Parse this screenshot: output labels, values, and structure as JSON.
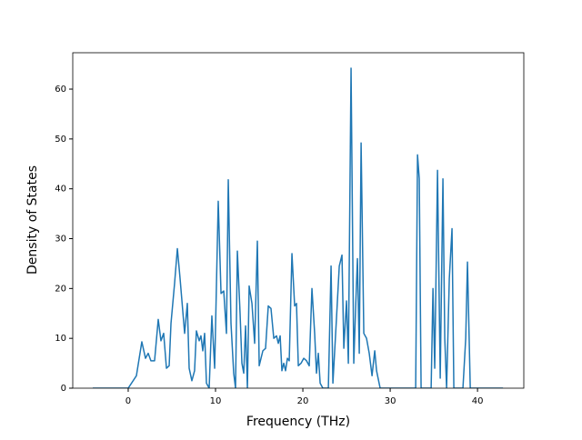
{
  "chart_data": {
    "type": "line",
    "x_label": "Frequency (THz)",
    "y_label": "Density of States",
    "xlim": [
      -6.35,
      45.3
    ],
    "ylim": [
      0,
      67.3
    ],
    "xticks": [
      0,
      10,
      20,
      30,
      40
    ],
    "yticks": [
      0,
      10,
      20,
      30,
      40,
      50,
      60
    ],
    "x": [
      -4.06,
      0,
      0.94,
      1.56,
      1.98,
      2.29,
      2.6,
      3.02,
      3.44,
      3.75,
      4.06,
      4.38,
      4.69,
      4.9,
      5.31,
      5.63,
      5.94,
      6.46,
      6.77,
      6.98,
      7.29,
      7.6,
      7.81,
      8.13,
      8.33,
      8.54,
      8.75,
      8.96,
      9.27,
      9.58,
      9.9,
      10.31,
      10.63,
      10.94,
      11.25,
      11.46,
      11.77,
      12.08,
      12.29,
      12.5,
      12.81,
      13.02,
      13.23,
      13.44,
      13.65,
      13.85,
      14.17,
      14.48,
      14.79,
      15.0,
      15.42,
      15.73,
      16.04,
      16.35,
      16.67,
      16.98,
      17.19,
      17.4,
      17.6,
      17.81,
      18.02,
      18.23,
      18.44,
      18.75,
      19.06,
      19.27,
      19.48,
      19.79,
      20.1,
      20.42,
      20.73,
      21.04,
      21.35,
      21.56,
      21.77,
      21.98,
      22.29,
      22.92,
      23.23,
      23.44,
      23.85,
      24.17,
      24.48,
      24.69,
      25.0,
      25.21,
      25.52,
      25.83,
      26.04,
      26.25,
      26.46,
      26.67,
      26.98,
      27.29,
      27.6,
      27.92,
      28.23,
      28.44,
      28.85,
      32.92,
      33.13,
      33.33,
      33.54,
      34.69,
      34.9,
      35.1,
      35.42,
      35.73,
      36.04,
      36.25,
      36.46,
      36.77,
      37.08,
      37.29,
      38.33,
      38.65,
      38.85,
      39.17,
      42.92
    ],
    "series": [
      {
        "color": "#1f77b4",
        "values": [
          0,
          0,
          2.5,
          9.3,
          6,
          7,
          5.5,
          5.5,
          13.8,
          9.5,
          11,
          4,
          4.5,
          13,
          21,
          28,
          22,
          11,
          17,
          4,
          1.5,
          3.5,
          11.5,
          9.5,
          10.5,
          7.5,
          11,
          1,
          0,
          14.5,
          4,
          37.5,
          19,
          19.5,
          11,
          41.8,
          13,
          3,
          0,
          27.5,
          15,
          5,
          3,
          12.5,
          0,
          20.5,
          17,
          9,
          29.5,
          4.5,
          7.5,
          8,
          16.5,
          16,
          10,
          10.5,
          9,
          10.5,
          3.5,
          5,
          3.5,
          6,
          5.5,
          27,
          16.5,
          17,
          4.5,
          5,
          6,
          5.5,
          4.5,
          20,
          11,
          3,
          7,
          1,
          0,
          0,
          24.5,
          1,
          14,
          24.5,
          26.7,
          8,
          17.5,
          5,
          64.2,
          5,
          16,
          26,
          7,
          49.2,
          11,
          10,
          7,
          2.5,
          7.5,
          3.5,
          0,
          0,
          46.8,
          42,
          0,
          0,
          20,
          4,
          43.7,
          2,
          42,
          10,
          0,
          22,
          32,
          0,
          0,
          10,
          25.3,
          0,
          0
        ]
      }
    ]
  }
}
